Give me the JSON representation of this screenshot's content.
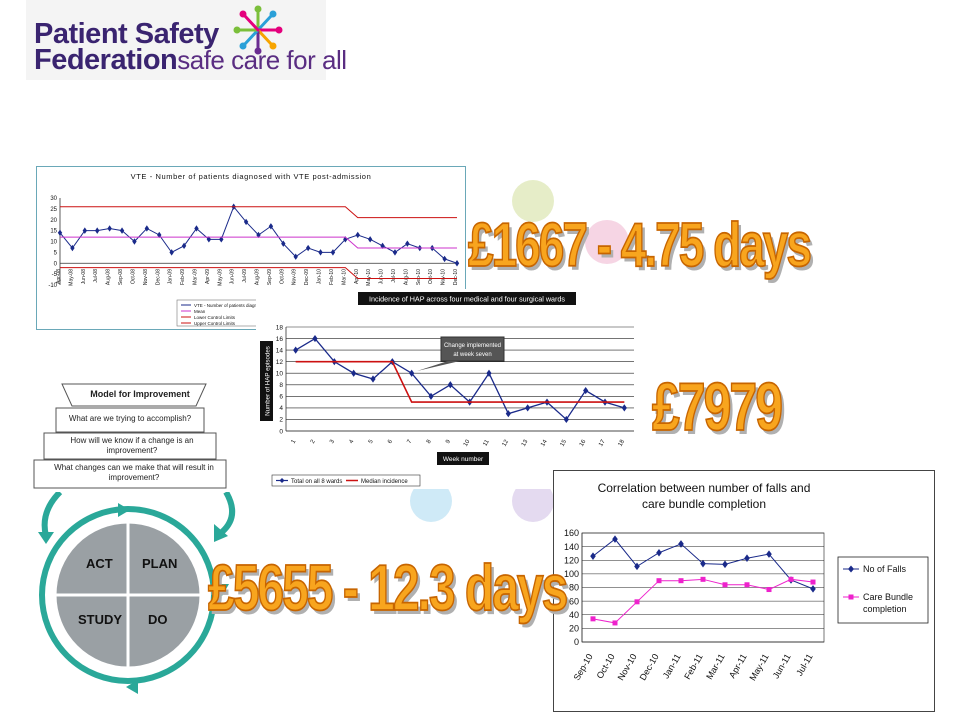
{
  "logo": {
    "line1": "Patient Safety",
    "line2": "Federation",
    "tagline": "safe care for all",
    "colors": {
      "text": "#3a2470",
      "tagline": "#5a2d82"
    }
  },
  "savings": {
    "vte": "£1667 - 4.75 days",
    "hap": "£7979",
    "falls": "£5655 - 12.3 days",
    "color": "#f8a51e"
  },
  "model_for_improvement": {
    "title": "Model for Improvement",
    "questions": [
      "What are we trying to accomplish?",
      "How will we know if a change is an improvement?",
      "What changes can we make that will result in improvement?"
    ],
    "cycle": [
      "ACT",
      "PLAN",
      "STUDY",
      "DO"
    ],
    "colors": {
      "quadrant": "#9aa0a4",
      "arrow": "#2aa899"
    }
  },
  "chart_data": [
    {
      "type": "line",
      "title": "VTE - Number of patients diagnosed with VTE post-admission",
      "xlabel": "",
      "ylabel": "",
      "ylim": [
        -10,
        30
      ],
      "yticks": [
        -10,
        -5,
        0,
        5,
        10,
        15,
        20,
        25,
        30
      ],
      "x": [
        "Apr-08",
        "May-08",
        "Jun-08",
        "Jul-08",
        "Aug-08",
        "Sep-08",
        "Oct-08",
        "Nov-08",
        "Dec-08",
        "Jan-09",
        "Feb-09",
        "Mar-09",
        "Apr-09",
        "May-09",
        "Jun-09",
        "Jul-09",
        "Aug-09",
        "Sep-09",
        "Oct-09",
        "Nov-09",
        "Dec-09",
        "Jan-10",
        "Feb-10",
        "Mar-10",
        "Apr-10",
        "May-10",
        "Jun-10",
        "Jul-10",
        "Aug-10",
        "Sep-10",
        "Oct-10",
        "Nov-10",
        "Dec-10"
      ],
      "series": [
        {
          "name": "VTE - Number of patients diagnosed",
          "color": "#1a2a8a",
          "values": [
            14,
            7,
            15,
            15,
            16,
            15,
            10,
            16,
            13,
            5,
            8,
            16,
            11,
            11,
            26,
            19,
            13,
            17,
            9,
            3,
            7,
            5,
            5,
            11,
            13,
            11,
            8,
            5,
            9,
            7,
            7,
            2,
            0
          ]
        },
        {
          "name": "Mean",
          "color": "#cc33cc",
          "values": [
            12,
            12,
            12,
            12,
            12,
            12,
            12,
            12,
            12,
            12,
            12,
            12,
            12,
            12,
            12,
            12,
            12,
            12,
            12,
            12,
            12,
            12,
            12,
            12,
            7,
            7,
            7,
            7,
            7,
            7,
            7,
            7,
            7
          ]
        },
        {
          "name": "Lower Control Limits",
          "color": "#cc1111",
          "values": [
            -2,
            -2,
            -2,
            -2,
            -2,
            -2,
            -2,
            -2,
            -2,
            -2,
            -2,
            -2,
            -2,
            -2,
            -2,
            -2,
            -2,
            -2,
            -2,
            -2,
            -2,
            -2,
            -2,
            -2,
            -7,
            -7,
            -7,
            -7,
            -7,
            -7,
            -7,
            -7,
            -7
          ]
        },
        {
          "name": "Upper Control Limits",
          "color": "#cc1111",
          "values": [
            26,
            26,
            26,
            26,
            26,
            26,
            26,
            26,
            26,
            26,
            26,
            26,
            26,
            26,
            26,
            26,
            26,
            26,
            26,
            26,
            26,
            26,
            26,
            26,
            21,
            21,
            21,
            21,
            21,
            21,
            21,
            21,
            21
          ]
        }
      ],
      "legend": "bottom"
    },
    {
      "type": "line",
      "title": "Incidence of HAP across four medical and four surgical wards",
      "xlabel": "Week number",
      "ylabel": "Number of HAP episodes",
      "ylim": [
        0,
        18
      ],
      "yticks": [
        0,
        2,
        4,
        6,
        8,
        10,
        12,
        14,
        16,
        18
      ],
      "x": [
        "1",
        "2",
        "3",
        "4",
        "5",
        "6",
        "7",
        "8",
        "9",
        "10",
        "11",
        "12",
        "13",
        "14",
        "15",
        "16",
        "17",
        "18"
      ],
      "series": [
        {
          "name": "Total on all 8 wards",
          "color": "#1a2a8a",
          "values": [
            14,
            16,
            12,
            10,
            9,
            12,
            10,
            6,
            8,
            5,
            10,
            3,
            4,
            5,
            2,
            7,
            5,
            4
          ]
        },
        {
          "name": "Median incidence",
          "color": "#cc1111",
          "values": [
            12,
            12,
            12,
            12,
            12,
            12,
            5,
            5,
            5,
            5,
            5,
            5,
            5,
            5,
            5,
            5,
            5,
            5
          ]
        }
      ],
      "annotation": "Change implemented at week seven",
      "legend": "bottom"
    },
    {
      "type": "line",
      "title": "Correlation between number of falls and care bundle completion",
      "xlabel": "",
      "ylabel": "",
      "ylim": [
        0,
        160
      ],
      "yticks": [
        0,
        20,
        40,
        60,
        80,
        100,
        120,
        140,
        160
      ],
      "x": [
        "Sep-10",
        "Oct-10",
        "Nov-10",
        "Dec-10",
        "Jan-11",
        "Feb-11",
        "Mar-11",
        "Apr-11",
        "May-11",
        "Jun-11",
        "Jul-11"
      ],
      "series": [
        {
          "name": "No of Falls",
          "color": "#1a2a8a",
          "values": [
            126,
            151,
            111,
            131,
            144,
            115,
            114,
            123,
            129,
            91,
            78
          ]
        },
        {
          "name": "Care Bundle completion",
          "color": "#ee22cc",
          "values": [
            34,
            28,
            59,
            90,
            90,
            92,
            84,
            84,
            77,
            92,
            88
          ]
        }
      ],
      "legend": "right"
    }
  ]
}
